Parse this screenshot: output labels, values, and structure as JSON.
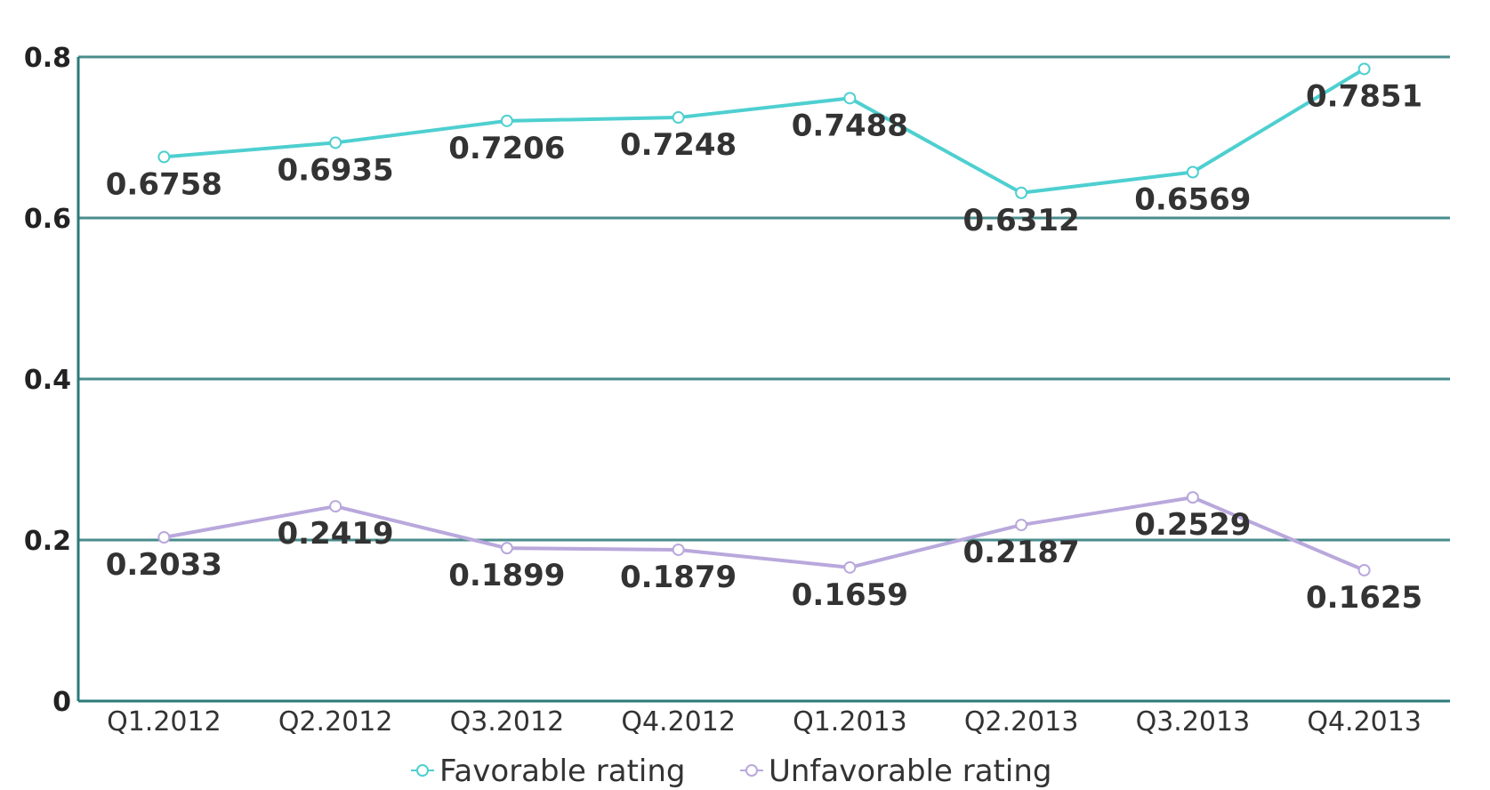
{
  "chart_data": {
    "type": "line",
    "title": "",
    "xlabel": "",
    "ylabel": "",
    "categories": [
      "Q1.2012",
      "Q2.2012",
      "Q3.2012",
      "Q4.2012",
      "Q1.2013",
      "Q2.2013",
      "Q3.2013",
      "Q4.2013"
    ],
    "y_ticks": [
      0,
      0.2,
      0.4,
      0.6,
      0.8
    ],
    "y_tick_labels": [
      "0",
      "0.2",
      "0.4",
      "0.6",
      "0.8"
    ],
    "ylim": [
      0,
      0.8
    ],
    "grid": true,
    "legend_position": "bottom-center",
    "series": [
      {
        "name": "Favorable rating",
        "color": "#4ecfd0",
        "values": [
          0.6758,
          0.6935,
          0.7206,
          0.7248,
          0.7488,
          0.6312,
          0.6569,
          0.7851
        ],
        "labels": [
          "0.6758",
          "0.6935",
          "0.7206",
          "0.7248",
          "0.7488",
          "0.6312",
          "0.6569",
          "0.7851"
        ]
      },
      {
        "name": "Unfavorable rating",
        "color": "#b9a8dc",
        "values": [
          0.2033,
          0.2419,
          0.1899,
          0.1879,
          0.1659,
          0.2187,
          0.2529,
          0.1625
        ],
        "labels": [
          "0.2033",
          "0.2419",
          "0.1899",
          "0.1879",
          "0.1659",
          "0.2187",
          "0.2529",
          "0.1625"
        ]
      }
    ],
    "axis_color": "#2b7a78",
    "grid_color": "#4a8c8c"
  }
}
